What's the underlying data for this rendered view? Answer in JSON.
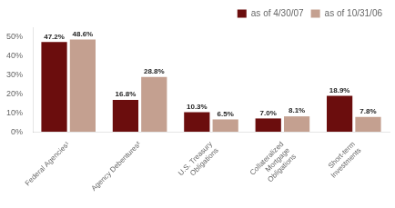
{
  "chart_data": {
    "type": "bar",
    "categories": [
      "Federal Agencies¹",
      "Agency Debentures²",
      "U.S. Treasury\nObligations",
      "Collateralized\nMortgage\nObligations",
      "Short-term\nInvestments"
    ],
    "series": [
      {
        "name": "as of 4/30/07",
        "color": "#6b0d0d",
        "values": [
          47.2,
          16.8,
          10.3,
          7.0,
          18.9
        ],
        "value_labels": [
          "47.2%",
          "16.8%",
          "10.3%",
          "7.0%",
          "18.9%"
        ]
      },
      {
        "name": "as of 10/31/06",
        "color": "#c4a090",
        "values": [
          48.6,
          28.8,
          6.5,
          8.1,
          7.8
        ],
        "value_labels": [
          "48.6%",
          "28.8%",
          "6.5%",
          "8.1%",
          "7.8%"
        ]
      }
    ],
    "ylim": [
      0,
      55
    ],
    "yticks": [
      {
        "value": 0,
        "label": "0%"
      },
      {
        "value": 10,
        "label": "10%"
      },
      {
        "value": 20,
        "label": "20%"
      },
      {
        "value": 30,
        "label": "30%"
      },
      {
        "value": 40,
        "label": "40%"
      },
      {
        "value": 50,
        "label": "50%"
      }
    ],
    "grid": false,
    "legend": "upper right",
    "data_labels": true
  }
}
